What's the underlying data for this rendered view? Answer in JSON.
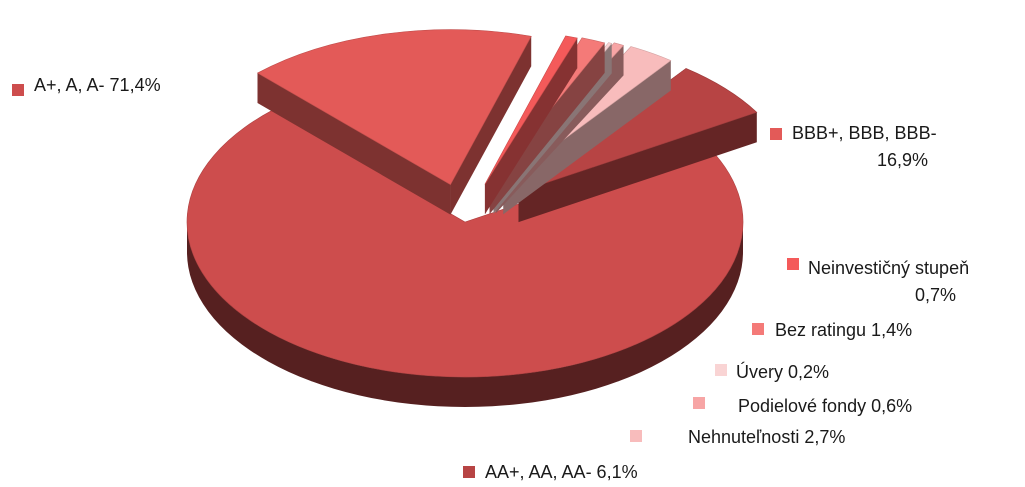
{
  "chart_data": {
    "type": "pie",
    "style": "3d-exploded",
    "slices": [
      {
        "label": "A+, A, A-",
        "value": 71.4,
        "value_text": "71,4%",
        "color": "#cd4d4d"
      },
      {
        "label": "BBB+, BBB, BBB-",
        "value": 16.9,
        "value_text": "16,9%",
        "color": "#e35a58"
      },
      {
        "label": "Neinvestičný stupeň",
        "value": 0.7,
        "value_text": "0,7%",
        "color": "#f45a5a"
      },
      {
        "label": "Bez ratingu",
        "value": 1.4,
        "value_text": "1,4%",
        "color": "#f47a78"
      },
      {
        "label": "Úvery",
        "value": 0.2,
        "value_text": "0,2%",
        "color": "#f9d4d4"
      },
      {
        "label": "Podielové fondy",
        "value": 0.6,
        "value_text": "0,6%",
        "color": "#f7a5a5"
      },
      {
        "label": "Nehnuteľnosti",
        "value": 2.7,
        "value_text": "2,7%",
        "color": "#f8bcbc"
      },
      {
        "label": "AA+, AA, AA-",
        "value": 6.1,
        "value_text": "6,1%",
        "color": "#b74444"
      }
    ]
  }
}
